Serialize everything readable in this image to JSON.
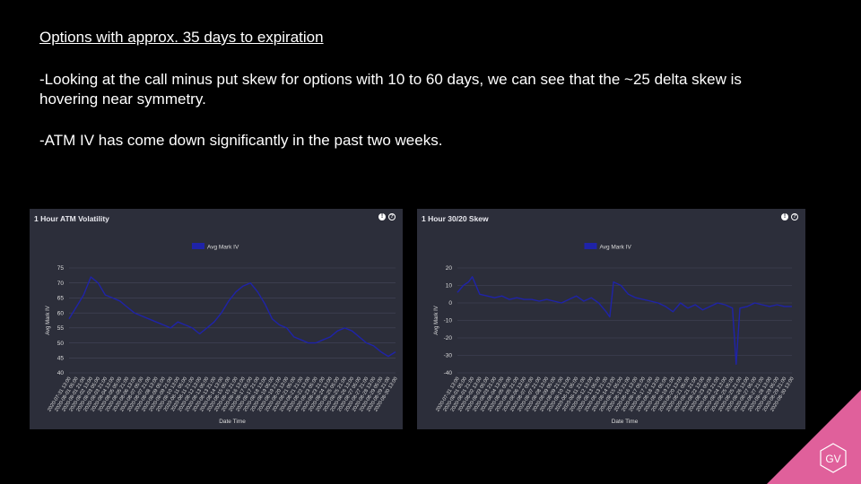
{
  "slide": {
    "title": "Options with approx. 35 days to expiration",
    "bullets": [
      "-Looking at the call minus put skew for options with 10 to 60 days, we can see that the ~25 delta skew is hovering near symmetry.",
      "-ATM IV has come down significantly  in the past two weeks."
    ],
    "logo_text": "GV"
  },
  "panels": [
    {
      "title": "1 Hour ATM Volatility",
      "info_icon": "info-icon",
      "help_icon": "help-icon"
    },
    {
      "title": "1 Hour 30/20 Skew",
      "info_icon": "info-icon",
      "help_icon": "help-icon"
    }
  ],
  "colors": {
    "series": "#1f23a8",
    "background": "#2c2e3a",
    "grid": "#45475a",
    "accent": "#e0609b"
  },
  "chart_data": [
    {
      "type": "line",
      "title": "1 Hour ATM Volatility",
      "xlabel": "Date Time",
      "ylabel": "Avg Mark IV",
      "ylim": [
        40,
        75
      ],
      "yticks": [
        40,
        45,
        50,
        55,
        60,
        65,
        70,
        75
      ],
      "legend": "top-center",
      "grid": true,
      "xticks": [
        "2020-07-31 13:00",
        "2020-08-01 05:00",
        "2020-08-01 21:00",
        "2020-08-02 13:00",
        "2020-08-03 05:00",
        "2020-08-03 21:00",
        "2020-08-04 13:00",
        "2020-08-05 05:00",
        "2020-08-05 21:00",
        "2020-08-06 13:00",
        "2020-08-07 05:00",
        "2020-08-07 21:00",
        "2020-08-08 13:00",
        "2020-08-09 05:00",
        "2020-08-09 21:00",
        "2020-08-10 13:00",
        "2020-08-11 05:00",
        "2020-08-11 21:00",
        "2020-08-12 13:00",
        "2020-08-13 05:00",
        "2020-08-13 21:00",
        "2020-08-14 13:00",
        "2020-08-15 05:00",
        "2020-08-15 21:00",
        "2020-08-16 13:00",
        "2020-08-17 05:00",
        "2020-08-17 21:00",
        "2020-08-18 13:00",
        "2020-08-19 05:00",
        "2020-08-19 21:00",
        "2020-08-20 13:00",
        "2020-08-21 05:00",
        "2020-08-21 21:00",
        "2020-08-22 13:00",
        "2020-08-23 05:00",
        "2020-08-23 21:00",
        "2020-08-24 13:00",
        "2020-08-25 05:00",
        "2020-08-25 21:00",
        "2020-08-26 13:00",
        "2020-08-27 05:00",
        "2020-08-27 21:00",
        "2020-08-28 13:00",
        "2020-08-29 05:00",
        "2020-08-29 21:00",
        "2020-08-30 13:00"
      ],
      "series": [
        {
          "name": "Avg Mark IV",
          "x": [
            0,
            1,
            2,
            3,
            4,
            5,
            6,
            7,
            8,
            9,
            10,
            11,
            12,
            13,
            14,
            15,
            16,
            17,
            18,
            19,
            20,
            21,
            22,
            23,
            24,
            25,
            26,
            27,
            28,
            29,
            30,
            31,
            32,
            33,
            34,
            35,
            36,
            37,
            38,
            39,
            40,
            41,
            42,
            43,
            44,
            45
          ],
          "values": [
            58,
            62,
            66,
            72,
            70,
            66,
            65,
            64,
            62,
            60,
            59,
            58,
            57,
            56,
            55,
            57,
            56,
            55,
            53,
            55,
            57,
            60,
            64,
            67,
            69,
            70,
            67,
            63,
            58,
            56,
            55,
            52,
            51,
            50,
            50,
            51,
            52,
            54,
            55,
            54,
            52,
            50,
            49,
            47,
            45.5,
            47
          ]
        }
      ]
    },
    {
      "type": "line",
      "title": "1 Hour 30/20 Skew",
      "xlabel": "Date Time",
      "ylabel": "Avg Mark IV",
      "ylim": [
        -40,
        20
      ],
      "yticks": [
        -40,
        -30,
        -20,
        -10,
        0,
        10,
        20
      ],
      "legend": "top-center",
      "grid": true,
      "xticks": [
        "2020-07-31 13:00",
        "2020-08-01 05:00",
        "2020-08-01 21:00",
        "2020-08-02 13:00",
        "2020-08-03 05:00",
        "2020-08-03 21:00",
        "2020-08-04 13:00",
        "2020-08-05 05:00",
        "2020-08-05 21:00",
        "2020-08-06 13:00",
        "2020-08-07 05:00",
        "2020-08-07 21:00",
        "2020-08-08 13:00",
        "2020-08-09 05:00",
        "2020-08-09 21:00",
        "2020-08-10 13:00",
        "2020-08-11 05:00",
        "2020-08-11 21:00",
        "2020-08-12 13:00",
        "2020-08-13 05:00",
        "2020-08-13 21:00",
        "2020-08-14 13:00",
        "2020-08-15 05:00",
        "2020-08-15 21:00",
        "2020-08-16 13:00",
        "2020-08-17 05:00",
        "2020-08-17 21:00",
        "2020-08-18 13:00",
        "2020-08-19 05:00",
        "2020-08-19 21:00",
        "2020-08-20 13:00",
        "2020-08-21 05:00",
        "2020-08-21 21:00",
        "2020-08-22 13:00",
        "2020-08-23 05:00",
        "2020-08-23 21:00",
        "2020-08-24 13:00",
        "2020-08-25 05:00",
        "2020-08-25 21:00",
        "2020-08-26 13:00",
        "2020-08-27 05:00",
        "2020-08-27 21:00",
        "2020-08-28 13:00",
        "2020-08-29 05:00",
        "2020-08-29 21:00",
        "2020-08-30 13:00"
      ],
      "series": [
        {
          "name": "Avg Mark IV",
          "x": [
            0,
            0.8,
            1.5,
            2,
            3,
            4,
            5,
            6,
            7,
            8,
            9,
            10,
            11,
            12,
            13,
            14,
            15,
            16,
            17,
            18,
            19,
            20,
            20.5,
            21,
            22,
            23,
            24,
            25,
            26,
            27,
            28,
            29,
            30,
            31,
            32,
            33,
            34,
            35,
            36,
            37,
            37.5,
            38,
            39,
            40,
            41,
            42,
            43,
            44,
            45
          ],
          "values": [
            6,
            10,
            12,
            15,
            5,
            4,
            3,
            4,
            2,
            3,
            2,
            2,
            1,
            2,
            1,
            0,
            2,
            4,
            1,
            3,
            0,
            -5,
            -8,
            12,
            10,
            5,
            3,
            2,
            1,
            0,
            -2,
            -5,
            0,
            -3,
            -1,
            -4,
            -2,
            0,
            -1,
            -3,
            -35,
            -3,
            -2,
            0,
            -1,
            -2,
            -1,
            -2,
            -2
          ]
        }
      ]
    }
  ]
}
